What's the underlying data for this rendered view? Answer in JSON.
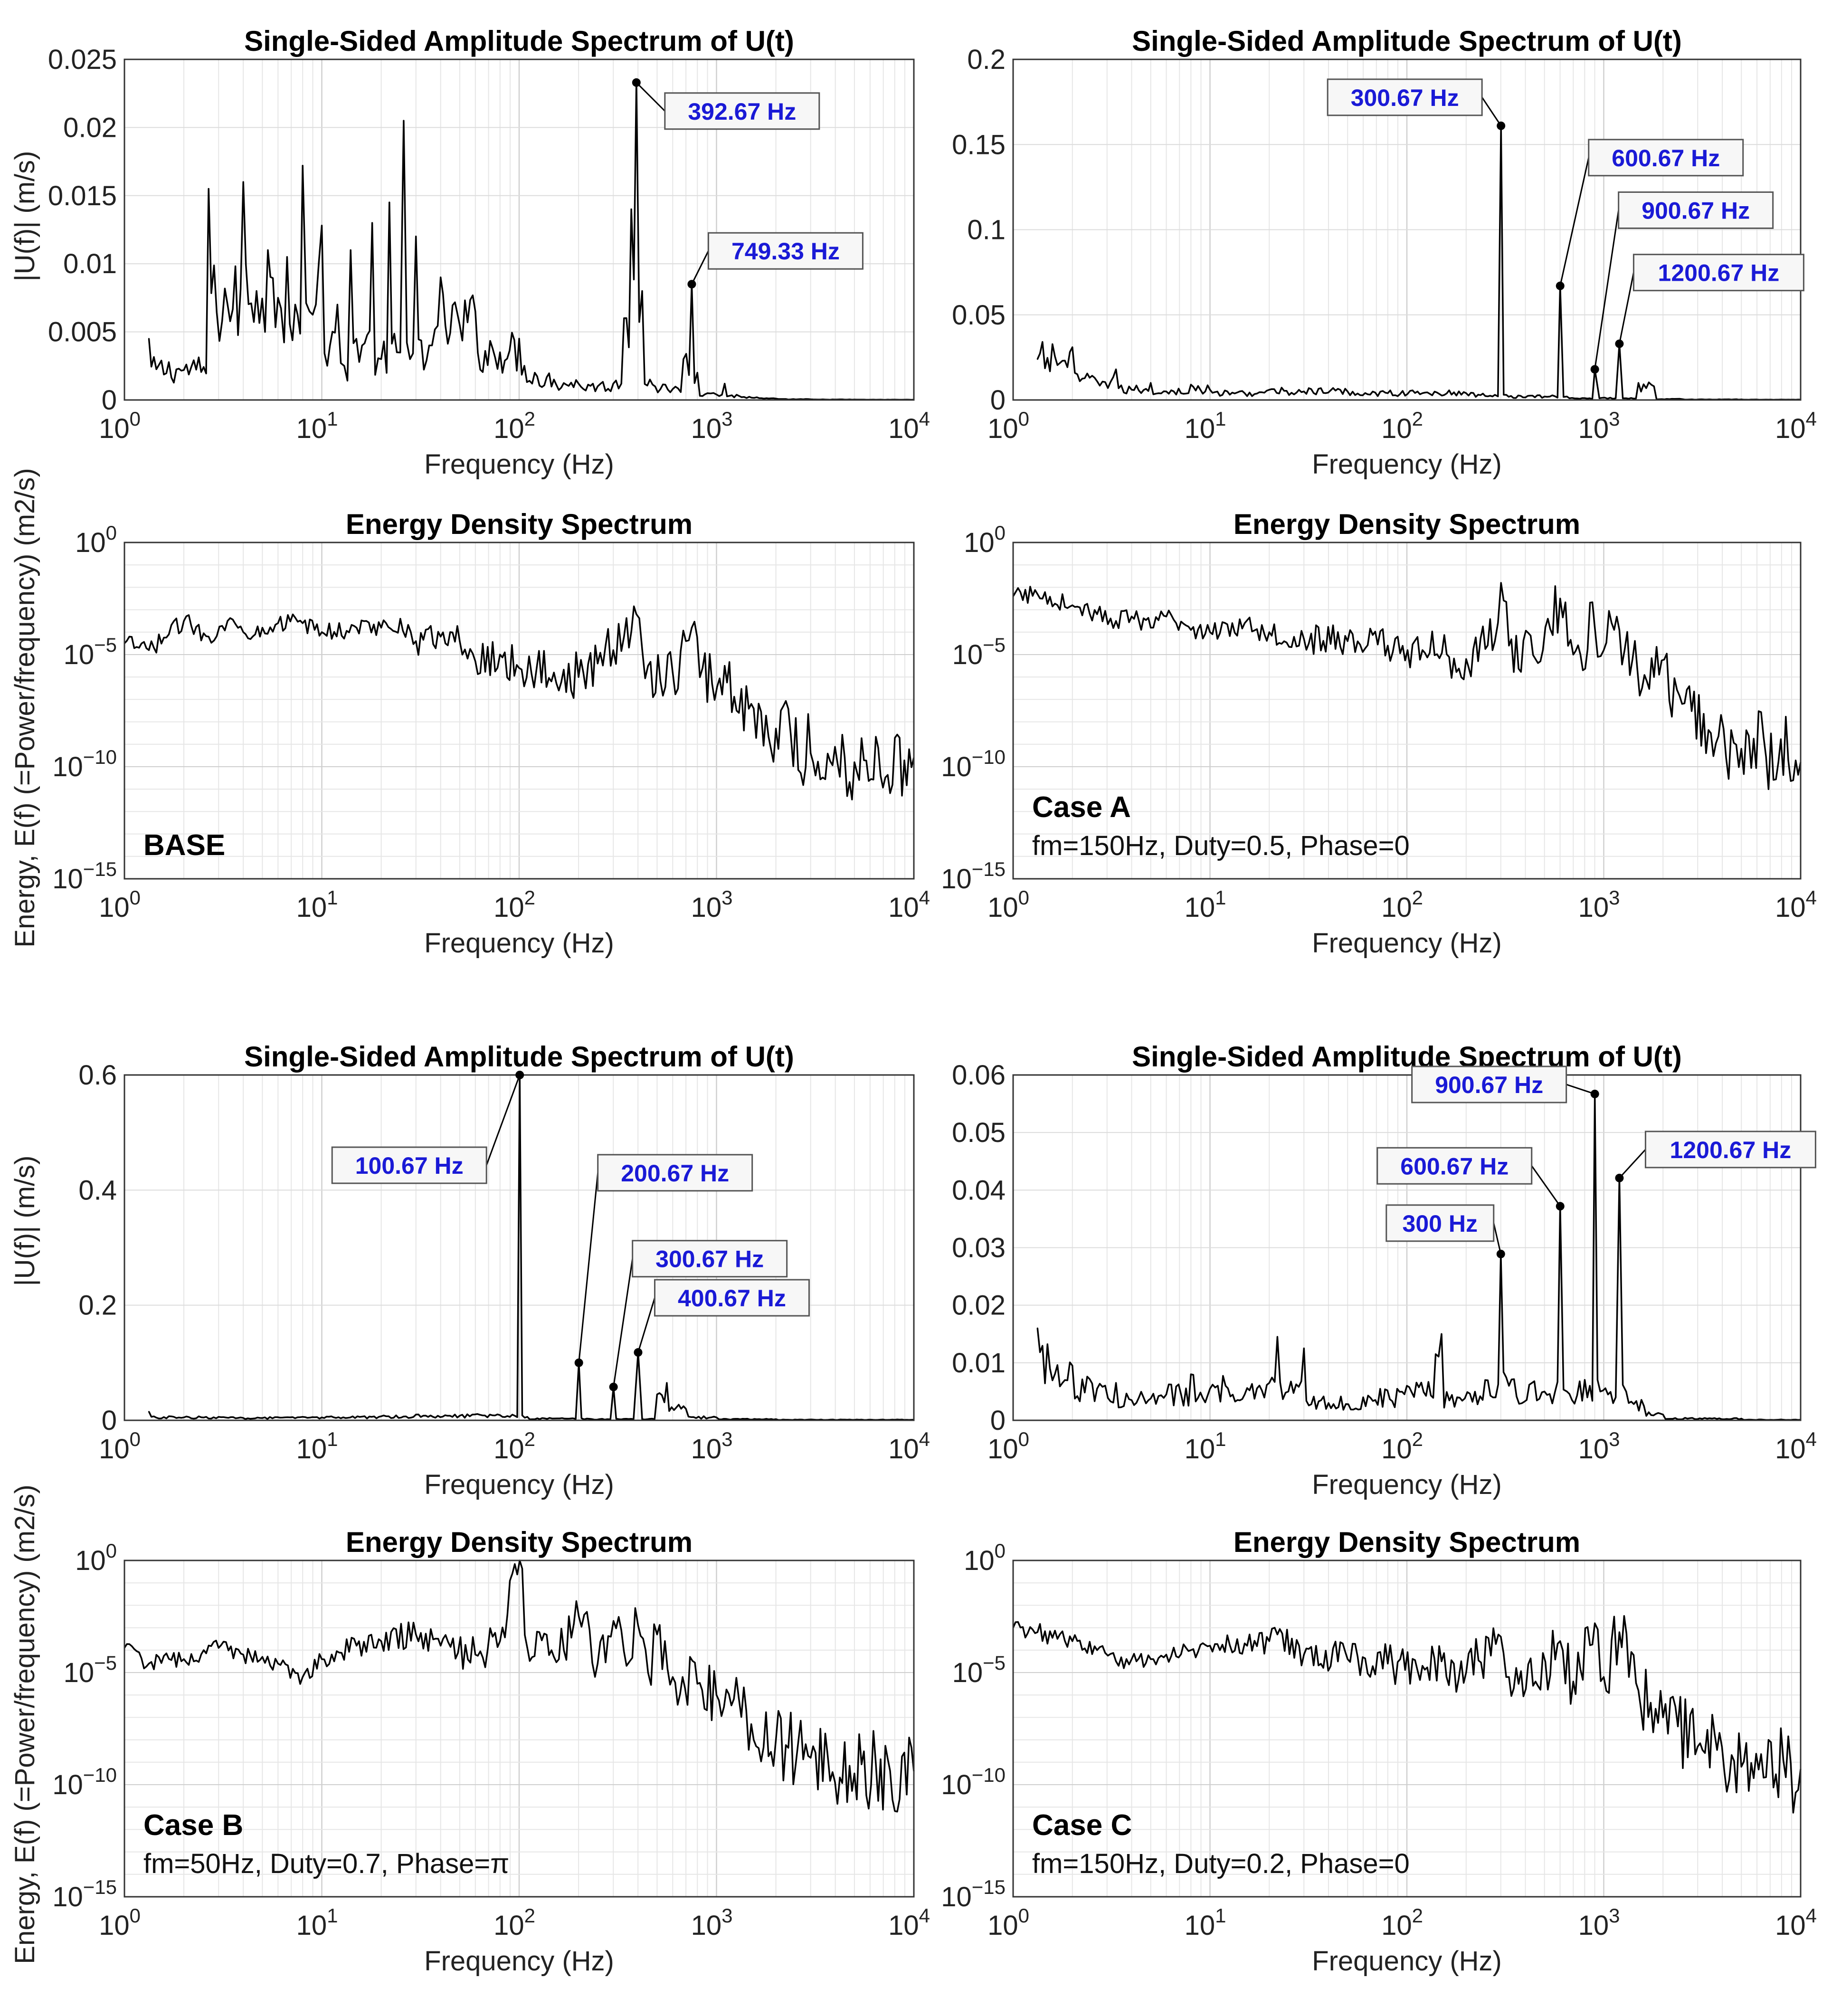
{
  "figure": {
    "ylabel_amplitude": "|U(f)| (m/s)",
    "ylabel_energy": "Energy, E(f) (=Power/frequency) (m2/s)"
  },
  "chart_data": [
    {
      "id": "base_amp",
      "type": "line",
      "scale": "linear",
      "title": "Single-Sided Amplitude Spectrum of U(t)",
      "xlabel": "Frequency (Hz)",
      "ylabel": "|U(f)| (m/s)",
      "xlim": [
        1,
        10000
      ],
      "ylim": [
        0,
        0.025
      ],
      "ytick_labels": [
        "0",
        "0.005",
        "0.01",
        "0.015",
        "0.02",
        "0.025"
      ],
      "series": [
        {
          "name": "U(f)",
          "x": [
            1.33,
            2,
            2.67,
            3.33,
            4,
            4.67,
            5.33,
            6,
            6.67,
            7.33,
            8,
            8.67,
            9.33,
            10,
            11,
            12,
            13,
            14,
            16,
            18,
            20,
            22,
            24,
            26,
            28,
            30,
            35,
            40,
            50,
            60,
            80,
            100,
            120,
            150,
            200,
            250,
            300,
            340,
            370,
            392.67,
            420,
            460,
            520,
            600,
            680,
            749.33,
            800,
            900,
            1000,
            1100,
            1300,
            1600,
            2000,
            3000,
            5000,
            10000
          ],
          "y": [
            0.0045,
            0.0022,
            0.0155,
            0.007,
            0.016,
            0.008,
            0.011,
            0.0075,
            0.0105,
            0.007,
            0.0172,
            0.0065,
            0.007,
            0.0128,
            0.004,
            0.007,
            0.0025,
            0.011,
            0.004,
            0.013,
            0.003,
            0.0145,
            0.0035,
            0.0205,
            0.003,
            0.012,
            0.004,
            0.009,
            0.0055,
            0.0065,
            0.0035,
            0.0045,
            0.002,
            0.0015,
            0.0012,
            0.001,
            0.0012,
            0.006,
            0.014,
            0.0233,
            0.008,
            0.0015,
            0.0008,
            0.0008,
            0.003,
            0.0085,
            0.002,
            0.0005,
            0.0004,
            0.0012,
            0.0003,
            0.0002,
            0.0001,
            5e-05,
            3e-05,
            2e-05
          ]
        }
      ],
      "annotations": [
        {
          "text": "392.67 Hz",
          "x": 392.67,
          "y": 0.0233
        },
        {
          "text": "749.33 Hz",
          "x": 749.33,
          "y": 0.0085
        }
      ]
    },
    {
      "id": "a_amp",
      "type": "line",
      "scale": "linear",
      "title": "Single-Sided Amplitude Spectrum of U(t)",
      "xlabel": "Frequency (Hz)",
      "ylabel": "",
      "xlim": [
        1,
        10000
      ],
      "ylim": [
        0,
        0.2
      ],
      "ytick_labels": [
        "0",
        "0.05",
        "0.1",
        "0.15",
        "0.2"
      ],
      "series": [
        {
          "name": "U(f)",
          "x": [
            1.33,
            2,
            2.67,
            3.33,
            4,
            5,
            6,
            8,
            10,
            15,
            20,
            30,
            50,
            80,
            120,
            200,
            280,
            300.67,
            320,
            500,
            600.67,
            650,
            850,
            900.67,
            950,
            1150,
            1200.67,
            1300,
            1500,
            1800,
            2500,
            5000,
            10000
          ],
          "y": [
            0.024,
            0.031,
            0.011,
            0.018,
            0.006,
            0.01,
            0.005,
            0.009,
            0.006,
            0.004,
            0.006,
            0.005,
            0.005,
            0.004,
            0.004,
            0.004,
            0.003,
            0.161,
            0.003,
            0.002,
            0.067,
            0.002,
            0.001,
            0.018,
            0.001,
            0.001,
            0.033,
            0.001,
            0.01,
            0.008,
            0.0005,
            0.0003,
            0.0002
          ]
        }
      ],
      "annotations": [
        {
          "text": "300.67 Hz",
          "x": 300.67,
          "y": 0.161
        },
        {
          "text": "600.67 Hz",
          "x": 600.67,
          "y": 0.067
        },
        {
          "text": "900.67 Hz",
          "x": 900.67,
          "y": 0.018
        },
        {
          "text": "1200.67 Hz",
          "x": 1200.67,
          "y": 0.033
        }
      ]
    },
    {
      "id": "base_energy",
      "type": "line",
      "scale": "log",
      "title": "Energy Density Spectrum",
      "xlabel": "Frequency (Hz)",
      "ylabel": "Energy, E(f) (=Power/frequency) (m2/s)",
      "xlim": [
        1,
        10000
      ],
      "ylim_log10": [
        -15,
        0
      ],
      "case_label": "BASE",
      "case_desc": "",
      "series": [
        {
          "name": "E(f)",
          "x": [
            1,
            1.33,
            2,
            2.67,
            3.33,
            4,
            5,
            6,
            8,
            10,
            15,
            20,
            25,
            30,
            40,
            50,
            60,
            80,
            100,
            150,
            200,
            250,
            300,
            340,
            392.67,
            450,
            520,
            600,
            700,
            749.33,
            850,
            950,
            1100,
            1300,
            1500,
            2000,
            3000,
            5000,
            10000
          ],
          "y_log10": [
            -4.5,
            -4.8,
            -3.5,
            -4.2,
            -3.5,
            -4,
            -3.8,
            -3.6,
            -3.6,
            -4,
            -3.8,
            -3.8,
            -3.4,
            -4.4,
            -4.2,
            -4.4,
            -5.3,
            -5,
            -5.6,
            -5.8,
            -6,
            -5.4,
            -4.8,
            -4.2,
            -3.2,
            -5.5,
            -6.2,
            -5.8,
            -4.4,
            -3.8,
            -5.6,
            -6.3,
            -5.5,
            -7.6,
            -7.2,
            -8.3,
            -9.4,
            -9.8,
            -9.6
          ]
        }
      ]
    },
    {
      "id": "a_energy",
      "type": "line",
      "scale": "log",
      "title": "Energy Density Spectrum",
      "xlabel": "Frequency (Hz)",
      "ylabel": "",
      "xlim": [
        1,
        10000
      ],
      "ylim_log10": [
        -15,
        0
      ],
      "case_label": "Case A",
      "case_desc": "fm=150Hz, Duty=0.5, Phase=0",
      "series": [
        {
          "name": "E(f)",
          "x": [
            1,
            1.33,
            2,
            2.67,
            3.33,
            4,
            5,
            6,
            8,
            10,
            15,
            20,
            30,
            50,
            80,
            120,
            200,
            280,
            300.67,
            330,
            450,
            600.67,
            700,
            900.67,
            1000,
            1200.67,
            1400,
            1800,
            2500,
            3500,
            5000,
            10000
          ],
          "y_log10": [
            -2.4,
            -2.3,
            -2.8,
            -3.2,
            -3.5,
            -3.3,
            -3.8,
            -3.3,
            -3.9,
            -4,
            -3.6,
            -4,
            -4.3,
            -4.4,
            -4.6,
            -4.8,
            -5.2,
            -4.4,
            -1.8,
            -4.6,
            -5.2,
            -2.5,
            -5,
            -3.8,
            -4.8,
            -3.9,
            -5.2,
            -6,
            -7.2,
            -8.5,
            -9.2,
            -9.8
          ]
        }
      ]
    },
    {
      "id": "b_amp",
      "type": "line",
      "scale": "linear",
      "title": "Single-Sided Amplitude Spectrum of U(t)",
      "xlabel": "Frequency (Hz)",
      "ylabel": "|U(f)| (m/s)",
      "xlim": [
        1,
        10000
      ],
      "ylim": [
        0,
        0.6
      ],
      "ytick_labels": [
        "0",
        "0.2",
        "0.4",
        "0.6"
      ],
      "series": [
        {
          "name": "U(f)",
          "x": [
            1.33,
            2,
            3,
            5,
            8,
            10,
            20,
            30,
            50,
            80,
            95,
            100.67,
            110,
            180,
            200.67,
            220,
            280,
            300.67,
            320,
            380,
            400.67,
            420,
            500,
            560,
            700,
            1000,
            2000,
            10000
          ],
          "y": [
            0.015,
            0.005,
            0.006,
            0.004,
            0.006,
            0.005,
            0.007,
            0.01,
            0.008,
            0.009,
            0.008,
            0.6,
            0.006,
            0.003,
            0.1,
            0.003,
            0.002,
            0.058,
            0.002,
            0.002,
            0.118,
            0.002,
            0.045,
            0.065,
            0.02,
            0.005,
            0.002,
            0.001
          ]
        }
      ],
      "annotations": [
        {
          "text": "100.67 Hz",
          "x": 100.67,
          "y": 0.6
        },
        {
          "text": "200.67 Hz",
          "x": 200.67,
          "y": 0.1
        },
        {
          "text": "300.67 Hz",
          "x": 300.67,
          "y": 0.058
        },
        {
          "text": "400.67 Hz",
          "x": 400.67,
          "y": 0.118
        }
      ]
    },
    {
      "id": "c_amp",
      "type": "line",
      "scale": "linear",
      "title": "Single-Sided Amplitude Spectrum of U(t)",
      "xlabel": "Frequency (Hz)",
      "ylabel": "",
      "xlim": [
        1,
        10000
      ],
      "ylim": [
        0,
        0.06
      ],
      "ytick_labels": [
        "0",
        "0.01",
        "0.02",
        "0.03",
        "0.04",
        "0.05",
        "0.06"
      ],
      "series": [
        {
          "name": "U(f)",
          "x": [
            1.33,
            2,
            2.67,
            3.33,
            4,
            5,
            6,
            8,
            10,
            12,
            15,
            20,
            22,
            25,
            30,
            40,
            60,
            100,
            140,
            150,
            180,
            250,
            300,
            330,
            500,
            600.67,
            650,
            850,
            900.67,
            960,
            1150,
            1200.67,
            1300,
            1600,
            2000,
            5000,
            10000
          ],
          "y": [
            0.016,
            0.0095,
            0.0055,
            0.0065,
            0.0035,
            0.0038,
            0.0045,
            0.008,
            0.0055,
            0.006,
            0.0045,
            0.0065,
            0.0145,
            0.005,
            0.0125,
            0.003,
            0.004,
            0.006,
            0.0115,
            0.015,
            0.004,
            0.007,
            0.0289,
            0.006,
            0.005,
            0.0372,
            0.005,
            0.006,
            0.0567,
            0.005,
            0.004,
            0.0421,
            0.005,
            0.0025,
            0.001,
            0.0003,
            0.0001
          ]
        }
      ],
      "annotations": [
        {
          "text": "300 Hz",
          "x": 300,
          "y": 0.0289
        },
        {
          "text": "600.67 Hz",
          "x": 600.67,
          "y": 0.0372
        },
        {
          "text": "900.67 Hz",
          "x": 900.67,
          "y": 0.0567
        },
        {
          "text": "1200.67 Hz",
          "x": 1200.67,
          "y": 0.0421
        }
      ]
    },
    {
      "id": "b_energy",
      "type": "line",
      "scale": "log",
      "title": "Energy Density Spectrum",
      "xlabel": "Frequency (Hz)",
      "ylabel": "Energy, E(f) (=Power/frequency) (m2/s)",
      "xlim": [
        1,
        10000
      ],
      "ylim_log10": [
        -15,
        0
      ],
      "case_label": "Case B",
      "case_desc": "fm=50Hz, Duty=0.7, Phase=π",
      "series": [
        {
          "name": "E(f)",
          "x": [
            1,
            1.33,
            2,
            3,
            4,
            5,
            6,
            8,
            10,
            15,
            20,
            30,
            40,
            60,
            80,
            100.67,
            110,
            150,
            200.67,
            250,
            300.67,
            350,
            400.67,
            450,
            500,
            600,
            800,
            1000,
            1500,
            2000,
            3000,
            5000,
            10000
          ],
          "y_log10": [
            -3.9,
            -4.6,
            -4.4,
            -3.9,
            -4.2,
            -4.3,
            -4.6,
            -5.2,
            -4.4,
            -3.8,
            -3.6,
            -3.3,
            -3.8,
            -4.2,
            -3.6,
            0,
            -3.9,
            -4.3,
            -2.5,
            -4.6,
            -2.7,
            -4.7,
            -2.9,
            -5,
            -3.3,
            -5.2,
            -5.5,
            -6,
            -7.3,
            -8,
            -8.8,
            -9.5,
            -9.4
          ]
        }
      ]
    },
    {
      "id": "c_energy",
      "type": "line",
      "scale": "log",
      "title": "Energy Density Spectrum",
      "xlabel": "Frequency (Hz)",
      "ylabel": "",
      "xlim": [
        1,
        10000
      ],
      "ylim_log10": [
        -15,
        0
      ],
      "case_label": "Case C",
      "case_desc": "fm=150Hz, Duty=0.2, Phase=0",
      "series": [
        {
          "name": "E(f)",
          "x": [
            1,
            1.33,
            2,
            2.67,
            3.33,
            4,
            5,
            6,
            8,
            10,
            15,
            20,
            22,
            30,
            50,
            80,
            120,
            150,
            200,
            300,
            330,
            450,
            600.67,
            700,
            900.67,
            1000,
            1200.67,
            1500,
            2000,
            3000,
            5000,
            10000
          ],
          "y_log10": [
            -3,
            -3.2,
            -3.6,
            -4,
            -4.5,
            -4.4,
            -4.4,
            -4.2,
            -4,
            -3.8,
            -3.7,
            -3.6,
            -3.3,
            -4.2,
            -4.4,
            -4.6,
            -4.7,
            -4.5,
            -5,
            -3.4,
            -5.2,
            -5.4,
            -3.6,
            -5.4,
            -2.8,
            -5.2,
            -3.2,
            -5.8,
            -7,
            -8.3,
            -9.2,
            -9.3
          ]
        }
      ]
    }
  ]
}
